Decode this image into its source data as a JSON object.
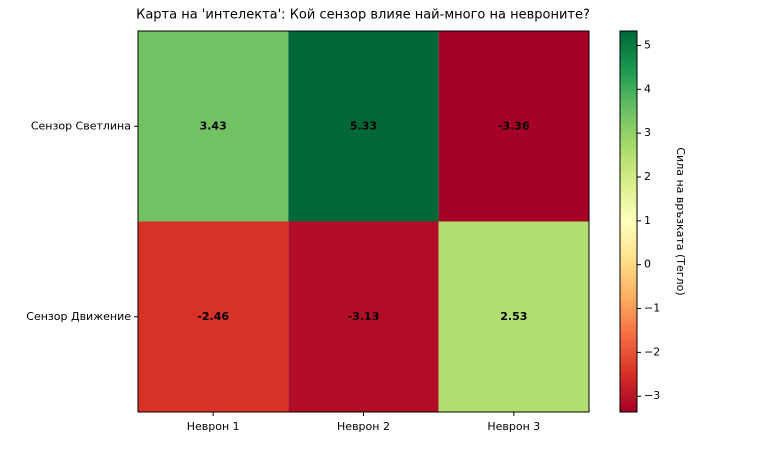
{
  "chart_data": {
    "type": "heatmap",
    "title": "Карта на 'интелекта': Кой сензор влияе най-много на невроните?",
    "x": [
      "Неврон 1",
      "Неврон 2",
      "Неврон 3"
    ],
    "y": [
      "Сензор Светлина",
      "Сензор Движение"
    ],
    "z": [
      [
        3.43,
        5.33,
        -3.36
      ],
      [
        -2.46,
        -3.13,
        2.53
      ]
    ],
    "colormap": "RdYlGn",
    "clim": [
      -3.36,
      5.33
    ],
    "colorbar_label": "Сила на връзката (Тегло)",
    "colorbar_ticks": [
      {
        "value": -3,
        "label": "−3"
      },
      {
        "value": -2,
        "label": "−2"
      },
      {
        "value": -1,
        "label": "−1"
      },
      0,
      1,
      2,
      3,
      4,
      5
    ]
  }
}
